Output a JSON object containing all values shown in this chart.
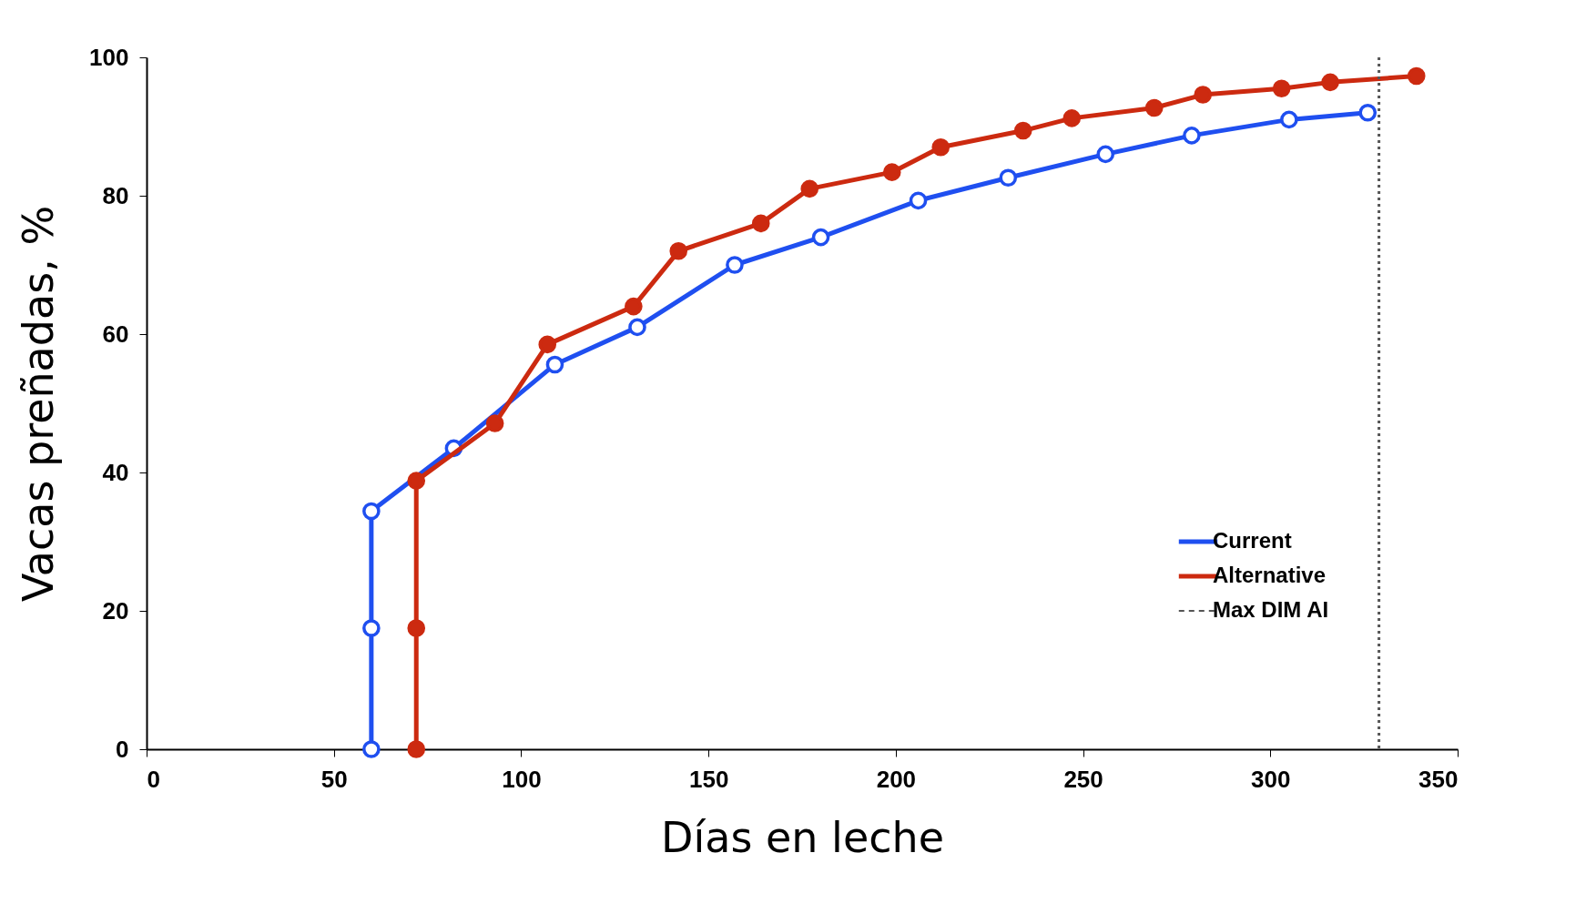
{
  "chart_data": {
    "type": "line",
    "xlabel": "Días en leche",
    "ylabel": "Vacas preñadas, %",
    "xlim": [
      0,
      350
    ],
    "xticks": [
      0,
      50,
      100,
      150,
      200,
      250,
      300,
      350
    ],
    "ylim": [
      0,
      100
    ],
    "yticks": [
      0,
      20,
      40,
      60,
      80,
      100
    ],
    "grid": false,
    "legend": "bottom right",
    "marker": "circle",
    "line_style": "solid",
    "series": [
      {
        "name": "Current",
        "color": "#1f4ff0",
        "x": [
          60,
          60,
          60,
          82,
          109,
          131,
          157,
          180,
          206,
          230,
          256,
          279,
          305,
          326
        ],
        "values": [
          0,
          17.5,
          34.4,
          43.5,
          55.6,
          61,
          70,
          74,
          79.3,
          82.6,
          86,
          88.7,
          91,
          92
        ]
      },
      {
        "name": "Alternative",
        "color": "#cc2a10",
        "x": [
          72,
          72,
          72,
          93,
          107,
          130,
          142,
          164,
          177,
          199,
          212,
          234,
          247,
          269,
          282,
          303,
          316,
          339
        ],
        "values": [
          0,
          17.5,
          38.8,
          47.1,
          58.5,
          64,
          72,
          76,
          81,
          83.4,
          87,
          89.4,
          91.2,
          92.7,
          94.6,
          95.5,
          96.4,
          97.3
        ]
      }
    ],
    "ref_lines": [
      {
        "axis": "x",
        "value": 329,
        "label": "Max DIM AI",
        "color": "#555555",
        "line_style": "dotted"
      }
    ]
  }
}
